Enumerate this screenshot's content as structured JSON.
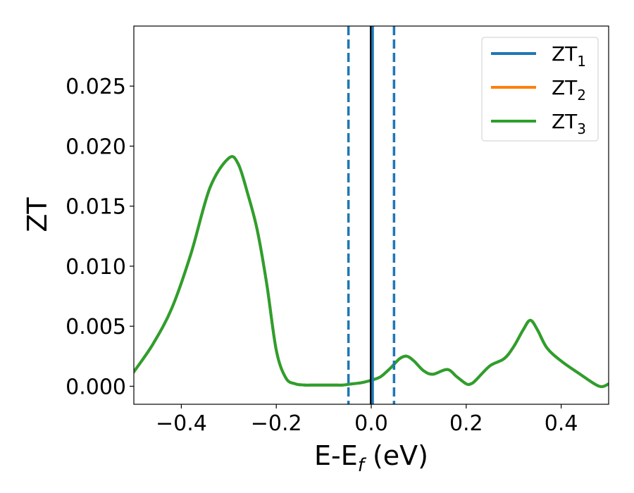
{
  "chart_data": {
    "type": "line",
    "xlabel": "E-E",
    "xlabel_sub": "f",
    "xlabel_unit": " (eV)",
    "ylabel": "ZT",
    "xlim": [
      -0.5,
      0.5
    ],
    "ylim": [
      -0.0015,
      0.03
    ],
    "xticks": [
      -0.4,
      -0.2,
      0.0,
      0.2,
      0.4
    ],
    "xtick_labels": [
      "−0.4",
      "−0.2",
      "0.0",
      "0.2",
      "0.4"
    ],
    "yticks": [
      0.0,
      0.005,
      0.01,
      0.015,
      0.02,
      0.025
    ],
    "ytick_labels": [
      "0.000",
      "0.005",
      "0.010",
      "0.015",
      "0.020",
      "0.025"
    ],
    "grid": false,
    "legend_position": "top-right",
    "series": [
      {
        "name": "ZT",
        "subscript": "1",
        "color": "#1f77b4",
        "x": [
          -0.5,
          -0.46,
          -0.42,
          -0.38,
          -0.34,
          -0.3,
          -0.28,
          -0.26,
          -0.24,
          -0.22,
          -0.2,
          -0.18,
          -0.16,
          -0.14,
          -0.12,
          -0.1,
          -0.08,
          -0.06,
          -0.04,
          -0.02,
          0.0,
          0.02,
          0.04,
          0.06,
          0.075,
          0.09,
          0.11,
          0.13,
          0.16,
          0.18,
          0.2,
          0.21,
          0.22,
          0.25,
          0.28,
          0.3,
          0.32,
          0.335,
          0.35,
          0.37,
          0.4,
          0.44,
          0.48,
          0.5
        ],
        "y": [
          0.0012,
          0.0035,
          0.0065,
          0.011,
          0.0165,
          0.019,
          0.0185,
          0.016,
          0.013,
          0.0085,
          0.003,
          0.0007,
          0.0002,
          0.0001,
          0.0001,
          0.0001,
          0.0001,
          0.0001,
          0.0002,
          0.0003,
          0.0005,
          0.0008,
          0.0015,
          0.0023,
          0.0025,
          0.0021,
          0.0013,
          0.001,
          0.0014,
          0.0008,
          0.0002,
          0.0002,
          0.0005,
          0.0017,
          0.0023,
          0.0033,
          0.0047,
          0.0055,
          0.0047,
          0.0032,
          0.0021,
          0.001,
          0.0,
          0.0002
        ]
      },
      {
        "name": "ZT",
        "subscript": "2",
        "color": "#ff7f0e",
        "x": [
          -0.5,
          -0.46,
          -0.42,
          -0.38,
          -0.34,
          -0.3,
          -0.28,
          -0.26,
          -0.24,
          -0.22,
          -0.2,
          -0.18,
          -0.16,
          -0.14,
          -0.12,
          -0.1,
          -0.08,
          -0.06,
          -0.04,
          -0.02,
          0.0,
          0.02,
          0.04,
          0.06,
          0.075,
          0.09,
          0.11,
          0.13,
          0.16,
          0.18,
          0.2,
          0.21,
          0.22,
          0.25,
          0.28,
          0.3,
          0.32,
          0.335,
          0.35,
          0.37,
          0.4,
          0.44,
          0.48,
          0.5
        ],
        "y": [
          0.0012,
          0.0035,
          0.0065,
          0.011,
          0.0165,
          0.019,
          0.0185,
          0.016,
          0.013,
          0.0085,
          0.003,
          0.0007,
          0.0002,
          0.0001,
          0.0001,
          0.0001,
          0.0001,
          0.0001,
          0.0002,
          0.0003,
          0.0005,
          0.0008,
          0.0015,
          0.0023,
          0.0025,
          0.0021,
          0.0013,
          0.001,
          0.0014,
          0.0008,
          0.0002,
          0.0002,
          0.0005,
          0.0017,
          0.0023,
          0.0033,
          0.0047,
          0.0055,
          0.0047,
          0.0032,
          0.0021,
          0.001,
          0.0,
          0.0002
        ]
      },
      {
        "name": "ZT",
        "subscript": "3",
        "color": "#2ca02c",
        "x": [
          -0.5,
          -0.46,
          -0.42,
          -0.38,
          -0.34,
          -0.3,
          -0.28,
          -0.26,
          -0.24,
          -0.22,
          -0.2,
          -0.18,
          -0.16,
          -0.14,
          -0.12,
          -0.1,
          -0.08,
          -0.06,
          -0.04,
          -0.02,
          0.0,
          0.02,
          0.04,
          0.06,
          0.075,
          0.09,
          0.11,
          0.13,
          0.16,
          0.18,
          0.2,
          0.21,
          0.22,
          0.25,
          0.28,
          0.3,
          0.32,
          0.335,
          0.35,
          0.37,
          0.4,
          0.44,
          0.48,
          0.5
        ],
        "y": [
          0.0012,
          0.0035,
          0.0065,
          0.011,
          0.0165,
          0.019,
          0.0185,
          0.016,
          0.013,
          0.0085,
          0.003,
          0.0007,
          0.0002,
          0.0001,
          0.0001,
          0.0001,
          0.0001,
          0.0001,
          0.0002,
          0.0003,
          0.0005,
          0.0008,
          0.0015,
          0.0023,
          0.0025,
          0.0021,
          0.0013,
          0.001,
          0.0014,
          0.0008,
          0.0002,
          0.0002,
          0.0005,
          0.0017,
          0.0023,
          0.0033,
          0.0047,
          0.0055,
          0.0047,
          0.0032,
          0.0021,
          0.001,
          0.0,
          0.0002
        ]
      }
    ],
    "vlines": [
      {
        "x": -0.048,
        "color": "#1f77b4",
        "style": "dashed"
      },
      {
        "x": 0.048,
        "color": "#1f77b4",
        "style": "dashed"
      },
      {
        "x": 0.0,
        "color": "#000000",
        "style": "solid"
      },
      {
        "x": 0.003,
        "color": "#1f77b4",
        "style": "solid"
      }
    ]
  }
}
